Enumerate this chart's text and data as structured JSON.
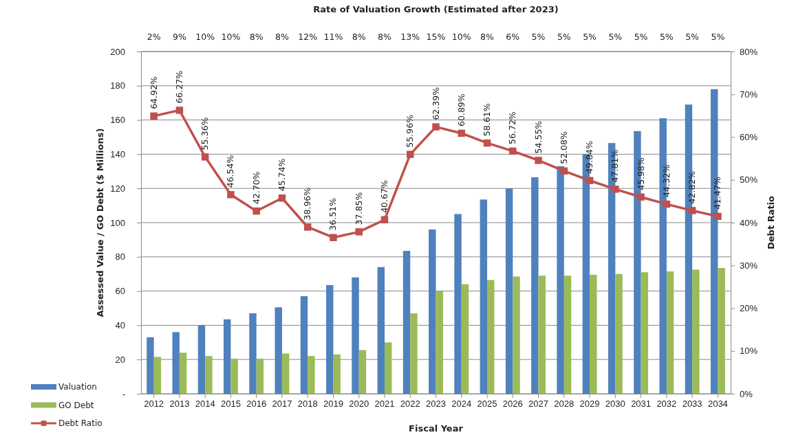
{
  "chart_data": {
    "type": "bar",
    "title": "Rate of Valuation Growth (Estimated after 2023)",
    "xlabel": "Fiscal Year",
    "ylabel": "Assessed Value / GO Debt ($ Millions)",
    "y2label": "Debt Ratio",
    "categories": [
      "2012",
      "2013",
      "2014",
      "2015",
      "2016",
      "2017",
      "2018",
      "2019",
      "2020",
      "2021",
      "2022",
      "2023",
      "2024",
      "2025",
      "2026",
      "2027",
      "2028",
      "2029",
      "2030",
      "2031",
      "2032",
      "2033",
      "2034"
    ],
    "series": [
      {
        "name": "Valuation",
        "color": "#4f81bd",
        "values": [
          33,
          36,
          40,
          43.5,
          47,
          50.5,
          57,
          63.5,
          68,
          74,
          83.5,
          96,
          105,
          113.5,
          120,
          126.5,
          133,
          140,
          146.5,
          153.5,
          161,
          169,
          178
        ]
      },
      {
        "name": "GO Debt",
        "color": "#9bbb59",
        "values": [
          21.5,
          24,
          22,
          20.5,
          20.5,
          23.5,
          22,
          23,
          25.5,
          30,
          47,
          60,
          64,
          66.5,
          68.5,
          69,
          69,
          69.5,
          70,
          71,
          71.5,
          72.5,
          73.5
        ]
      },
      {
        "name": "Debt Ratio",
        "type": "line",
        "axis": "y2",
        "color": "#c0504d",
        "marker": "square",
        "values": [
          64.92,
          66.27,
          55.36,
          46.54,
          42.7,
          45.74,
          38.96,
          36.51,
          37.85,
          40.67,
          55.96,
          62.39,
          60.89,
          58.61,
          56.72,
          54.55,
          52.08,
          49.84,
          47.81,
          45.98,
          44.32,
          42.82,
          41.47
        ],
        "value_labels": [
          "64.92%",
          "66.27%",
          "55.36%",
          "46.54%",
          "42.70%",
          "45.74%",
          "38.96%",
          "36.51%",
          "37.85%",
          "40.67%",
          "55.96%",
          "62.39%",
          "60.89%",
          "58.61%",
          "56.72%",
          "54.55%",
          "52.08%",
          "49.84%",
          "47.81%",
          "45.98%",
          "44.32%",
          "42.82%",
          "41.47%"
        ]
      }
    ],
    "ylim": [
      0,
      200
    ],
    "yticks": [
      {
        "value": 0,
        "label": "-"
      },
      20,
      40,
      60,
      80,
      100,
      120,
      140,
      160,
      180,
      200
    ],
    "y2lim": [
      0,
      80
    ],
    "y2ticks": [
      {
        "value": 0,
        "label": "0%"
      },
      {
        "value": 10,
        "label": "10%"
      },
      {
        "value": 20,
        "label": "20%"
      },
      {
        "value": 30,
        "label": "30%"
      },
      {
        "value": 40,
        "label": "40%"
      },
      {
        "value": 50,
        "label": "50%"
      },
      {
        "value": 60,
        "label": "60%"
      },
      {
        "value": 70,
        "label": "70%"
      },
      {
        "value": 80,
        "label": "80%"
      }
    ],
    "grid": "y",
    "legend": "bottom left",
    "annotations": [
      "2%",
      "9%",
      "10%",
      "10%",
      "8%",
      "8%",
      "12%",
      "11%",
      "8%",
      "8%",
      "13%",
      "15%",
      "10%",
      "8%",
      "6%",
      "5%",
      "5%",
      "5%",
      "5%",
      "5%",
      "5%",
      "5%",
      "5%"
    ]
  }
}
